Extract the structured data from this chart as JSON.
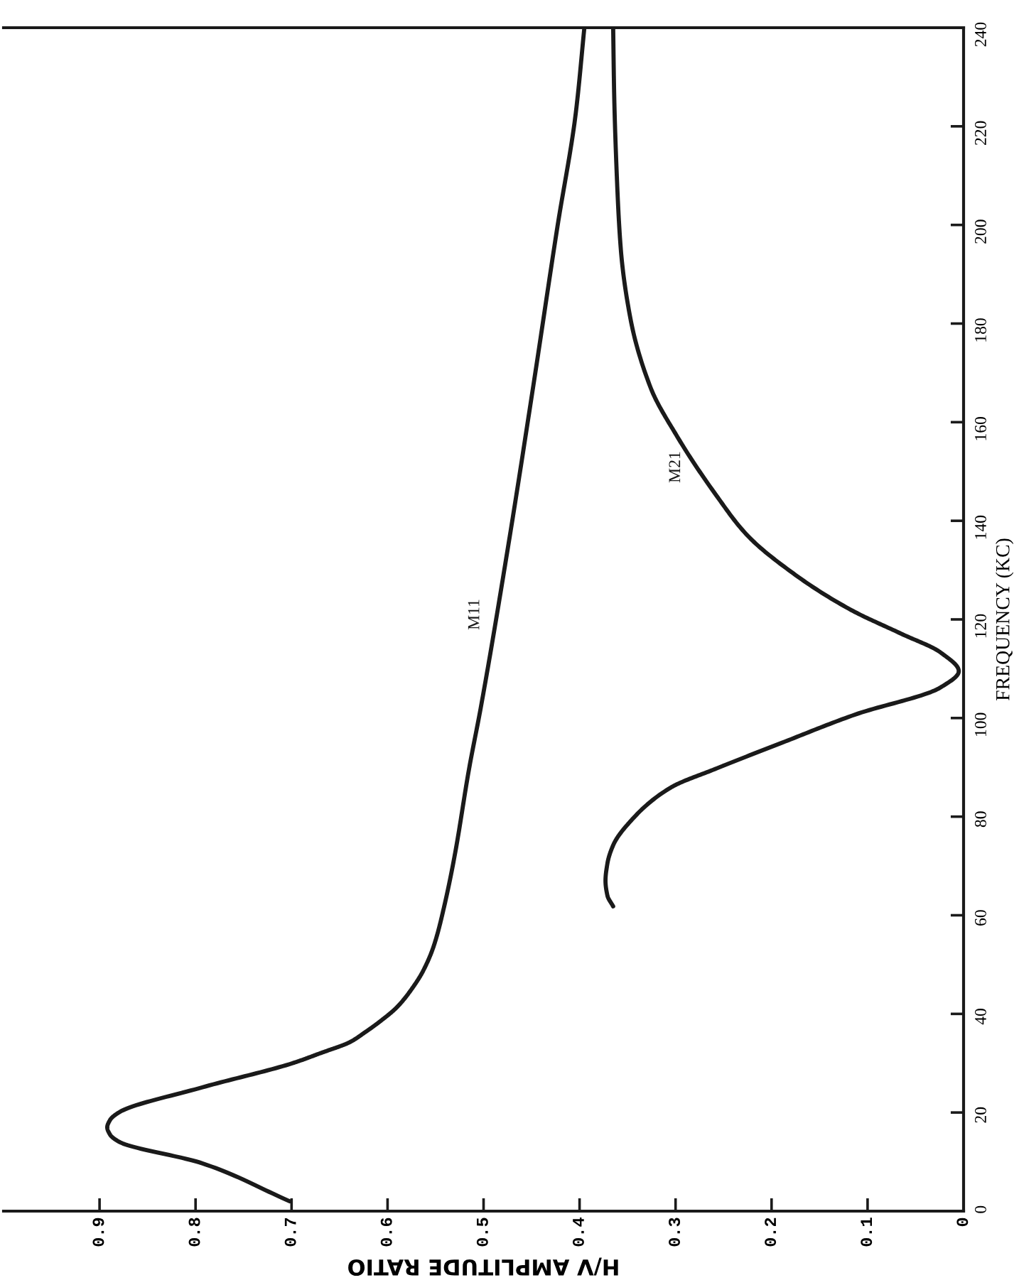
{
  "chart_data": {
    "type": "line",
    "xlabel": "H/V AMPLITUDE RATIO",
    "ylabel": "FREQUENCY (KC)",
    "xlim": [
      1.0,
      0
    ],
    "ylim": [
      0,
      240
    ],
    "xticks": [
      0,
      0.1,
      0.2,
      0.3,
      0.4,
      0.5,
      0.6,
      0.7,
      0.8,
      0.9
    ],
    "yticks": [
      0,
      20,
      40,
      60,
      80,
      100,
      120,
      140,
      160,
      180,
      200,
      220,
      240
    ],
    "marker": "none",
    "line_style": "solid",
    "series": [
      {
        "name": "M11",
        "color": "#1a1a1a",
        "x": [
          0.702,
          0.793,
          0.88,
          0.889,
          0.892,
          0.889,
          0.88,
          0.793,
          0.699,
          0.669,
          0.639,
          0.624,
          0.609,
          0.59,
          0.575,
          0.563,
          0.552,
          0.541,
          0.53,
          0.515,
          0.503,
          0.474,
          0.448,
          0.423,
          0.404,
          0.395
        ],
        "values": [
          2,
          9.7,
          14.1,
          15.5,
          17,
          18.5,
          20,
          25.1,
          30,
          32.1,
          34.3,
          36.2,
          38.3,
          41.4,
          45,
          48.7,
          53.7,
          61.8,
          72.2,
          89.8,
          102,
          135.3,
          167.6,
          199.7,
          222.6,
          240
        ]
      },
      {
        "name": "M21",
        "color": "#1a1a1a",
        "x": [
          0.365,
          0.371,
          0.373,
          0.371,
          0.365,
          0.344,
          0.305,
          0.257,
          0.189,
          0.113,
          0.024,
          0.005,
          0.024,
          0.065,
          0.117,
          0.175,
          0.225,
          0.257,
          0.298,
          0.326,
          0.347,
          0.357,
          0.361,
          0.364,
          0.365
        ],
        "values": [
          61.8,
          64,
          67,
          70.5,
          74.2,
          79.7,
          85.9,
          89.8,
          95,
          100.7,
          106.2,
          109.5,
          113.3,
          117.1,
          121.9,
          129,
          137,
          145,
          157,
          167,
          181,
          195,
          209,
          227,
          240
        ]
      }
    ]
  }
}
